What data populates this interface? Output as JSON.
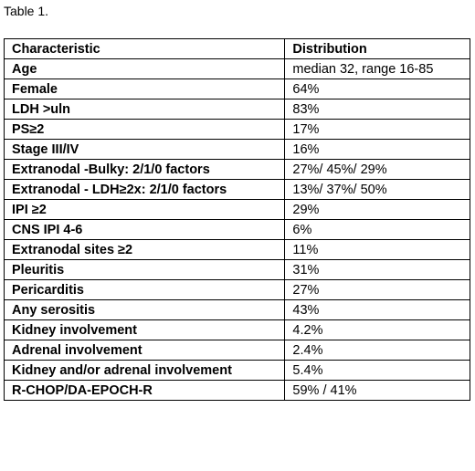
{
  "caption": "Table 1.",
  "table": {
    "headers": [
      "Characteristic",
      "Distribution"
    ],
    "rows": [
      [
        "Age",
        "median 32, range 16-85"
      ],
      [
        "Female",
        "64%"
      ],
      [
        "LDH >uln",
        "83%"
      ],
      [
        "PS≥2",
        "17%"
      ],
      [
        "Stage III/IV",
        "16%"
      ],
      [
        "Extranodal -Bulky: 2/1/0 factors",
        "27%/ 45%/ 29%"
      ],
      [
        "Extranodal - LDH≥2x: 2/1/0 factors",
        "13%/ 37%/ 50%"
      ],
      [
        "IPI ≥2",
        "29%"
      ],
      [
        "CNS IPI 4-6",
        "6%"
      ],
      [
        "Extranodal sites ≥2",
        "11%"
      ],
      [
        "Pleuritis",
        "31%"
      ],
      [
        "Pericarditis",
        "27%"
      ],
      [
        "Any serositis",
        "43%"
      ],
      [
        "Kidney involvement",
        "4.2%"
      ],
      [
        "Adrenal involvement",
        "2.4%"
      ],
      [
        "Kidney and/or adrenal involvement",
        "5.4%"
      ],
      [
        "R-CHOP/DA-EPOCH-R",
        "59% / 41%"
      ]
    ]
  }
}
